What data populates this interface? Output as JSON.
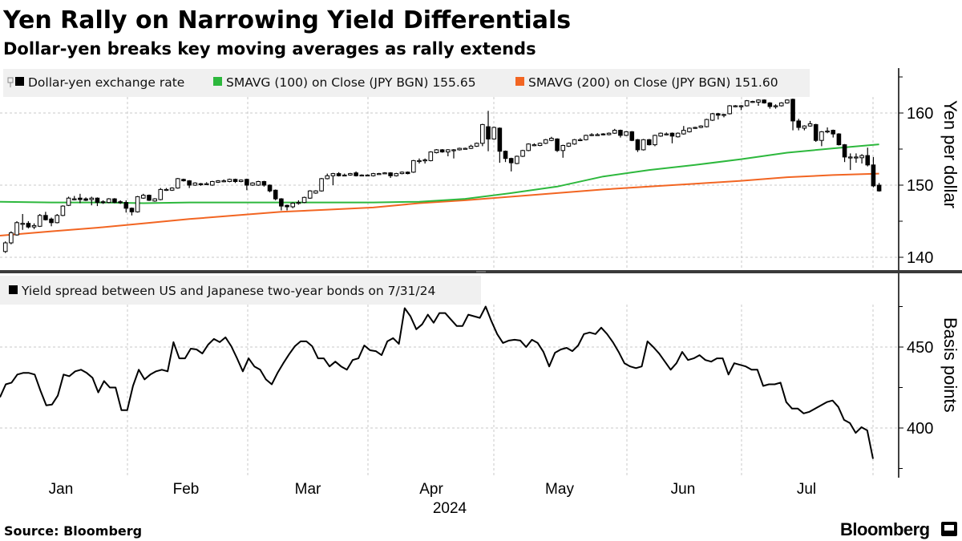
{
  "header": {
    "title": "Yen Rally on Narrowing Yield Differentials",
    "subtitle": "Dollar-yen breaks key moving averages as rally extends"
  },
  "footer": {
    "source": "Source: Bloomberg",
    "logo": "Bloomberg"
  },
  "colors": {
    "candle": "#000000",
    "sma100": "#2db83d",
    "sma200": "#f26522",
    "spread": "#000000",
    "legend_bg": "#f0f0f0",
    "divider": "#3a3a3a"
  },
  "chart_data": [
    {
      "type": "candlestick",
      "title": "",
      "ylabel": "Yen per dollar",
      "ylim": [
        136,
        165
      ],
      "yticks": [
        140,
        150,
        160
      ],
      "yminor": [
        145,
        155,
        165
      ],
      "axis_side": "right",
      "grid": true,
      "legend_placement": "top-left",
      "x_categories": [
        "Jan",
        "Feb",
        "Mar",
        "Apr",
        "May",
        "Jun",
        "Jul"
      ],
      "x_year": "2024",
      "legend": [
        {
          "label": "Dollar-yen exchange rate",
          "color": "#000000"
        },
        {
          "label": "SMAVG (100)  on Close (JPY BGN) 155.65",
          "color": "#2db83d"
        },
        {
          "label": "SMAVG (200)  on Close (JPY BGN) 151.60",
          "color": "#f26522"
        }
      ],
      "ohlc_fields": [
        "open",
        "high",
        "low",
        "close"
      ],
      "candles": [
        [
          140.8,
          142.2,
          140.6,
          142.0
        ],
        [
          142.0,
          143.6,
          141.8,
          143.4
        ],
        [
          143.1,
          145.0,
          143.0,
          144.8
        ],
        [
          144.7,
          146.0,
          143.8,
          144.7
        ],
        [
          144.7,
          145.0,
          144.0,
          144.2
        ],
        [
          144.2,
          144.7,
          143.9,
          144.4
        ],
        [
          144.3,
          146.0,
          144.2,
          145.8
        ],
        [
          145.8,
          146.3,
          145.1,
          145.2
        ],
        [
          145.3,
          145.5,
          144.3,
          144.8
        ],
        [
          144.8,
          146.0,
          144.7,
          145.8
        ],
        [
          145.8,
          147.2,
          145.7,
          147.1
        ],
        [
          147.2,
          148.4,
          147.1,
          148.2
        ],
        [
          148.1,
          148.5,
          147.9,
          148.1
        ],
        [
          148.2,
          148.8,
          147.5,
          148.0
        ],
        [
          148.1,
          148.3,
          147.8,
          147.9
        ],
        [
          148.0,
          148.4,
          147.2,
          148.2
        ],
        [
          148.2,
          148.3,
          147.1,
          147.6
        ],
        [
          147.7,
          147.9,
          147.4,
          147.6
        ],
        [
          147.6,
          148.2,
          147.5,
          148.1
        ],
        [
          148.1,
          148.2,
          147.5,
          147.6
        ],
        [
          147.7,
          147.9,
          147.4,
          147.6
        ],
        [
          147.6,
          147.9,
          146.2,
          146.8
        ],
        [
          146.8,
          146.9,
          145.8,
          146.3
        ],
        [
          146.3,
          148.5,
          146.2,
          148.4
        ],
        [
          148.2,
          148.8,
          148.1,
          148.6
        ],
        [
          148.6,
          148.7,
          147.8,
          147.9
        ],
        [
          147.8,
          148.2,
          147.7,
          148.1
        ],
        [
          148.0,
          149.6,
          147.9,
          149.4
        ],
        [
          149.4,
          149.6,
          149.2,
          149.4
        ],
        [
          149.3,
          149.7,
          149.2,
          149.6
        ],
        [
          149.6,
          151.0,
          149.5,
          150.9
        ],
        [
          150.8,
          150.9,
          150.5,
          150.6
        ],
        [
          150.6,
          150.7,
          149.6,
          150.0
        ],
        [
          150.0,
          150.4,
          149.9,
          150.3
        ],
        [
          150.2,
          150.3,
          149.9,
          150.1
        ],
        [
          150.2,
          150.4,
          150.0,
          150.2
        ],
        [
          150.0,
          150.6,
          149.9,
          150.5
        ],
        [
          150.4,
          150.7,
          150.3,
          150.6
        ],
        [
          150.6,
          150.8,
          150.4,
          150.6
        ],
        [
          150.5,
          150.9,
          150.4,
          150.8
        ],
        [
          150.8,
          150.9,
          150.3,
          150.5
        ],
        [
          150.5,
          150.8,
          150.4,
          150.7
        ],
        [
          150.8,
          150.9,
          149.3,
          150.0
        ],
        [
          150.0,
          150.4,
          149.9,
          150.3
        ],
        [
          150.0,
          150.6,
          149.9,
          150.5
        ],
        [
          150.5,
          150.6,
          149.8,
          150.0
        ],
        [
          150.0,
          150.1,
          149.0,
          149.2
        ],
        [
          149.3,
          149.4,
          147.9,
          148.1
        ],
        [
          148.1,
          148.2,
          146.5,
          147.1
        ],
        [
          147.2,
          147.3,
          146.5,
          147.0
        ],
        [
          147.0,
          147.6,
          146.8,
          147.5
        ],
        [
          147.6,
          147.9,
          147.3,
          147.6
        ],
        [
          147.6,
          148.4,
          147.5,
          148.3
        ],
        [
          148.2,
          149.3,
          148.1,
          149.2
        ],
        [
          148.9,
          149.3,
          148.8,
          149.2
        ],
        [
          149.2,
          151.0,
          149.1,
          150.9
        ],
        [
          150.9,
          151.6,
          150.8,
          151.3
        ],
        [
          151.3,
          151.7,
          150.0,
          151.6
        ],
        [
          151.6,
          151.8,
          151.2,
          151.3
        ],
        [
          151.4,
          151.6,
          151.3,
          151.4
        ],
        [
          151.4,
          151.7,
          151.3,
          151.6
        ],
        [
          151.7,
          151.9,
          151.2,
          151.3
        ],
        [
          151.4,
          151.5,
          151.3,
          151.4
        ],
        [
          151.4,
          151.5,
          151.3,
          151.4
        ],
        [
          151.3,
          151.7,
          151.2,
          151.6
        ],
        [
          151.6,
          151.7,
          151.5,
          151.6
        ],
        [
          151.7,
          151.8,
          151.6,
          151.7
        ],
        [
          151.7,
          151.8,
          151.0,
          151.3
        ],
        [
          151.3,
          151.7,
          151.2,
          151.6
        ],
        [
          151.6,
          151.9,
          151.5,
          151.8
        ],
        [
          151.8,
          151.9,
          151.5,
          151.6
        ],
        [
          151.8,
          153.5,
          151.7,
          153.4
        ],
        [
          153.4,
          153.7,
          153.0,
          153.4
        ],
        [
          153.5,
          153.7,
          153.0,
          153.5
        ],
        [
          153.4,
          154.7,
          153.3,
          154.6
        ],
        [
          154.5,
          155.0,
          154.4,
          154.9
        ],
        [
          154.9,
          155.0,
          154.5,
          154.6
        ],
        [
          154.6,
          155.0,
          154.0,
          154.9
        ],
        [
          154.9,
          155.0,
          153.7,
          154.9
        ],
        [
          154.9,
          155.2,
          154.8,
          155.1
        ],
        [
          155.1,
          155.2,
          155.0,
          155.1
        ],
        [
          155.1,
          155.6,
          155.0,
          155.4
        ],
        [
          155.4,
          155.9,
          155.3,
          155.8
        ],
        [
          155.8,
          158.5,
          155.4,
          158.4
        ],
        [
          158.1,
          160.3,
          154.7,
          156.4
        ],
        [
          156.4,
          158.1,
          156.3,
          158.0
        ],
        [
          157.9,
          158.0,
          153.1,
          154.7
        ],
        [
          154.7,
          154.8,
          153.2,
          153.7
        ],
        [
          153.7,
          153.8,
          151.9,
          153.1
        ],
        [
          153.0,
          154.1,
          152.9,
          154.0
        ],
        [
          154.0,
          154.9,
          153.9,
          154.8
        ],
        [
          154.8,
          155.8,
          154.7,
          155.7
        ],
        [
          155.6,
          155.8,
          155.4,
          155.6
        ],
        [
          155.5,
          155.9,
          155.4,
          155.8
        ],
        [
          155.8,
          156.4,
          155.7,
          156.3
        ],
        [
          156.2,
          156.7,
          156.1,
          156.5
        ],
        [
          156.4,
          156.5,
          154.6,
          154.8
        ],
        [
          154.8,
          155.6,
          153.8,
          155.5
        ],
        [
          155.4,
          155.9,
          155.3,
          155.8
        ],
        [
          155.7,
          156.4,
          155.6,
          156.3
        ],
        [
          156.3,
          156.5,
          156.1,
          156.3
        ],
        [
          156.3,
          157.0,
          156.2,
          156.9
        ],
        [
          157.0,
          157.2,
          156.8,
          157.0
        ],
        [
          157.0,
          157.2,
          156.9,
          157.0
        ],
        [
          157.1,
          157.2,
          156.9,
          157.0
        ],
        [
          157.0,
          157.3,
          156.9,
          157.2
        ],
        [
          157.2,
          157.8,
          157.1,
          157.6
        ],
        [
          157.6,
          157.7,
          156.6,
          156.9
        ],
        [
          156.9,
          157.5,
          156.8,
          157.4
        ],
        [
          157.4,
          157.5,
          156.1,
          156.2
        ],
        [
          156.3,
          156.4,
          154.6,
          154.9
        ],
        [
          154.9,
          156.4,
          154.8,
          156.3
        ],
        [
          156.3,
          156.4,
          155.5,
          155.6
        ],
        [
          155.6,
          157.0,
          155.4,
          156.9
        ],
        [
          156.8,
          157.3,
          156.7,
          157.2
        ],
        [
          157.1,
          157.3,
          156.9,
          157.1
        ],
        [
          157.2,
          157.3,
          155.8,
          156.8
        ],
        [
          156.7,
          157.3,
          156.6,
          157.2
        ],
        [
          157.1,
          158.2,
          157.0,
          157.6
        ],
        [
          157.4,
          158.0,
          157.3,
          157.9
        ],
        [
          158.0,
          158.1,
          157.8,
          158.0
        ],
        [
          158.0,
          158.3,
          157.9,
          158.2
        ],
        [
          158.1,
          159.2,
          158.0,
          159.1
        ],
        [
          159.0,
          160.0,
          158.9,
          159.9
        ],
        [
          159.9,
          160.0,
          159.1,
          159.7
        ],
        [
          159.8,
          159.9,
          159.4,
          159.8
        ],
        [
          159.9,
          161.1,
          159.8,
          161.0
        ],
        [
          161.0,
          161.1,
          160.8,
          161.0
        ],
        [
          161.0,
          161.1,
          160.4,
          161.0
        ],
        [
          161.0,
          161.8,
          160.9,
          161.7
        ],
        [
          161.6,
          161.7,
          161.4,
          161.6
        ],
        [
          161.5,
          161.9,
          161.0,
          161.8
        ],
        [
          161.8,
          161.9,
          161.3,
          161.4
        ],
        [
          161.4,
          161.5,
          160.6,
          160.9
        ],
        [
          161.0,
          161.2,
          160.6,
          161.0
        ],
        [
          161.0,
          161.5,
          160.9,
          161.4
        ],
        [
          161.4,
          161.9,
          161.3,
          161.8
        ],
        [
          161.9,
          162.0,
          157.6,
          158.9
        ],
        [
          158.9,
          159.2,
          157.6,
          158.0
        ],
        [
          157.9,
          158.3,
          157.6,
          158.2
        ],
        [
          158.2,
          158.9,
          158.1,
          158.5
        ],
        [
          158.4,
          158.5,
          156.0,
          156.2
        ],
        [
          156.2,
          157.5,
          155.4,
          157.4
        ],
        [
          157.5,
          158.0,
          157.2,
          157.5
        ],
        [
          157.6,
          157.7,
          156.6,
          157.1
        ],
        [
          157.1,
          157.2,
          155.5,
          155.6
        ],
        [
          155.6,
          155.7,
          153.2,
          153.9
        ],
        [
          153.9,
          154.4,
          152.1,
          153.9
        ],
        [
          153.9,
          154.4,
          153.1,
          153.9
        ],
        [
          153.8,
          154.3,
          153.0,
          154.1
        ],
        [
          154.1,
          155.2,
          152.6,
          152.8
        ],
        [
          152.8,
          153.9,
          149.7,
          149.9
        ],
        [
          150.0,
          150.3,
          149.1,
          149.2
        ]
      ],
      "sma100": [
        147.7,
        147.6,
        147.6,
        147.5,
        147.6,
        147.6,
        147.6,
        147.6,
        147.6,
        147.7,
        148.1,
        148.9,
        149.8,
        151.2,
        152.1,
        152.8,
        153.6,
        154.5,
        155.1,
        155.65
      ],
      "sma200": [
        143.0,
        143.6,
        144.1,
        144.7,
        145.3,
        145.8,
        146.3,
        146.6,
        146.9,
        147.5,
        147.9,
        148.4,
        148.9,
        149.4,
        149.8,
        150.2,
        150.6,
        151.1,
        151.4,
        151.6
      ]
    },
    {
      "type": "line",
      "title": "",
      "ylabel": "Basis points",
      "ylim": [
        368,
        490
      ],
      "yticks": [
        400,
        450
      ],
      "yminor": [
        375,
        425,
        475
      ],
      "axis_side": "right",
      "grid": true,
      "legend_placement": "top-left",
      "legend": [
        {
          "label": "Yield spread between US and Japanese two-year bonds on 7/31/24",
          "color": "#000000"
        }
      ],
      "values": [
        419,
        427,
        428,
        433,
        434,
        434,
        433,
        423,
        414,
        414.5,
        420,
        433,
        432,
        435,
        436,
        434,
        431,
        422,
        429,
        425,
        425,
        411,
        411,
        426,
        436,
        430,
        433,
        435,
        436,
        435,
        453,
        443,
        443,
        449,
        448.5,
        446,
        451.5,
        455,
        453,
        456,
        450.5,
        443,
        435,
        443,
        438,
        436,
        430,
        427,
        434,
        440,
        445.5,
        450.5,
        453.5,
        453.5,
        450.5,
        443,
        443,
        438,
        441,
        438,
        436,
        442,
        443,
        451,
        448,
        447.5,
        445,
        453.5,
        455.5,
        452,
        474,
        469,
        461,
        464,
        470,
        465,
        471,
        471,
        467,
        463,
        463,
        470,
        469,
        468,
        475,
        466,
        458,
        452.5,
        454,
        454.5,
        454,
        450,
        454.5,
        452.5,
        447,
        438,
        446.5,
        448.5,
        449.5,
        447.5,
        451,
        458,
        459,
        458,
        462,
        458,
        453,
        447,
        440,
        438,
        437,
        438,
        453.5,
        450,
        446,
        441,
        436,
        440,
        447,
        442,
        443,
        445,
        442,
        441,
        443,
        443,
        433,
        440,
        439,
        438,
        436,
        436,
        426,
        427,
        427,
        428,
        416,
        412,
        412,
        409,
        410,
        412,
        414,
        416,
        417,
        413,
        405,
        403,
        397,
        400.5,
        398.5,
        381
      ]
    }
  ]
}
